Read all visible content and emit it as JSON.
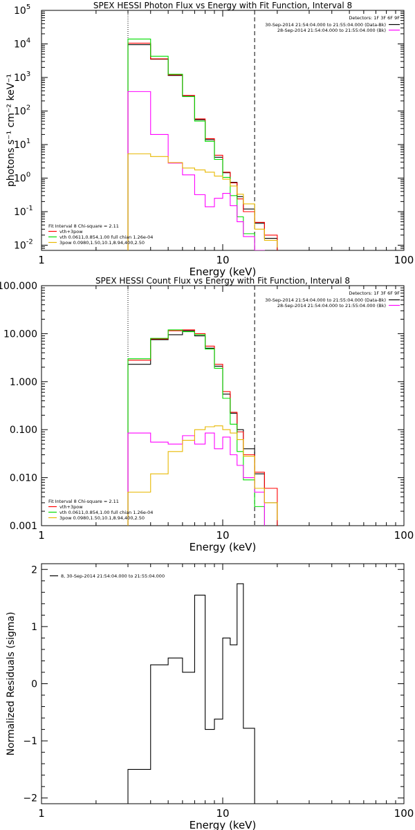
{
  "chart_data": [
    {
      "type": "line",
      "title": "SPEX HESSI Photon Flux vs Energy with Fit Function, Interval 8",
      "xlabel": "Energy (keV)",
      "ylabel": "photons s⁻¹ cm⁻² keV⁻¹",
      "xscale": "log",
      "yscale": "log",
      "xlim": [
        1,
        100
      ],
      "ylim": [
        0.007,
        100000
      ],
      "xticks": [
        {
          "v": 1,
          "label": "1"
        },
        {
          "v": 10,
          "label": "10"
        },
        {
          "v": 100,
          "label": "100"
        }
      ],
      "yticks": [
        {
          "v": 0.01,
          "base": "10",
          "exp": "-2"
        },
        {
          "v": 0.1,
          "base": "10",
          "exp": "-1"
        },
        {
          "v": 1,
          "base": "10",
          "exp": "0"
        },
        {
          "v": 10,
          "base": "10",
          "exp": "1"
        },
        {
          "v": 100,
          "base": "10",
          "exp": "2"
        },
        {
          "v": 1000,
          "base": "10",
          "exp": "3"
        },
        {
          "v": 10000,
          "base": "10",
          "exp": "4"
        },
        {
          "v": 100000,
          "base": "10",
          "exp": "5"
        }
      ],
      "vlines": [
        {
          "x": 3.0,
          "style": "dotted"
        },
        {
          "x": 15.0,
          "style": "dashed"
        }
      ],
      "header_right": {
        "detectors": "Detectors: 1F 3F 6F 9F",
        "lines": [
          {
            "text": "30-Sep-2014 21:54:04.000 to 21:55:04.000 (Data-Bk)",
            "color": "#000000"
          },
          {
            "text": "28-Sep-2014 21:54:04.000 to 21:55:04.000 (Bk)",
            "color": "#ff00ff"
          }
        ]
      },
      "legend_bottom_left": {
        "heading": "Fit Interval 8   Chi-square = 2.11",
        "items": [
          {
            "text": "vth+3pow",
            "color": "#ff0000"
          },
          {
            "text": "vth 0.0611,0.854,1.00  full chian 1.26e-04",
            "color": "#00dd00"
          },
          {
            "text": "3pow 0.0980,1.50,10.1,8.94,400,2.50",
            "color": "#e8b800"
          }
        ]
      },
      "edges": [
        3.0,
        4.0,
        5.0,
        6.0,
        7.0,
        8.0,
        9.0,
        10.0,
        11.0,
        12.0,
        13.0,
        15.0,
        17.0,
        20.0
      ],
      "series": [
        {
          "color": "#000000",
          "values": [
            9500,
            3500,
            1150,
            280,
            55,
            14,
            4.2,
            1.45,
            0.75,
            0.28,
            0.12,
            0.045,
            0.016
          ]
        },
        {
          "color": "#ff0000",
          "values": [
            10500,
            3600,
            1200,
            290,
            58,
            15,
            4.8,
            1.5,
            0.72,
            0.24,
            0.1,
            0.048,
            0.02
          ]
        },
        {
          "color": "#00dd00",
          "values": [
            14000,
            4300,
            1250,
            270,
            50,
            12.5,
            3.6,
            1.05,
            0.3,
            0.07,
            0.022,
            0.006
          ]
        },
        {
          "color": "#ff00ff",
          "values": [
            380,
            20,
            2.8,
            1.25,
            0.32,
            0.14,
            0.25,
            0.35,
            0.15,
            0.05,
            0.018,
            0.007
          ]
        },
        {
          "color": "#e8b800",
          "values": [
            5.3,
            4.4,
            2.9,
            2.0,
            1.75,
            1.5,
            1.15,
            0.93,
            0.58,
            0.33,
            0.17,
            0.03,
            0.014,
            0.0085
          ]
        }
      ]
    },
    {
      "type": "line",
      "title": "SPEX HESSI Count Flux vs Energy with Fit Function, Interval 8",
      "xlabel": "Energy (keV)",
      "ylabel": "",
      "xscale": "log",
      "yscale": "log",
      "xlim": [
        1,
        100
      ],
      "ylim": [
        0.001,
        100
      ],
      "xticks": [
        {
          "v": 1,
          "label": "1"
        },
        {
          "v": 10,
          "label": "10"
        },
        {
          "v": 100,
          "label": "100"
        }
      ],
      "yticks": [
        {
          "v": 0.001,
          "label": "0.001"
        },
        {
          "v": 0.01,
          "label": "0.010"
        },
        {
          "v": 0.1,
          "label": "0.100"
        },
        {
          "v": 1,
          "label": "1.000"
        },
        {
          "v": 10,
          "label": "10.000"
        },
        {
          "v": 100,
          "label": "100.000"
        }
      ],
      "vlines": [
        {
          "x": 3.0,
          "style": "dotted"
        },
        {
          "x": 15.0,
          "style": "dashed"
        }
      ],
      "header_right": {
        "detectors": "Detectors: 1F 3F 6F 9F",
        "lines": [
          {
            "text": "30-Sep-2014 21:54:04.000 to 21:55:04.000 (Data-Bk)",
            "color": "#000000"
          },
          {
            "text": "28-Sep-2014 21:54:04.000 to 21:55:04.000 (Bk)",
            "color": "#ff00ff"
          }
        ]
      },
      "legend_bottom_left": {
        "heading": "Fit Interval 8   Chi-square = 2.11",
        "items": [
          {
            "text": "vth+3pow",
            "color": "#ff0000"
          },
          {
            "text": "vth 0.0611,0.854,1.00  full chian 1.26e-04",
            "color": "#00dd00"
          },
          {
            "text": "3pow 0.0980,1.50,10.1,8.94,400,2.50",
            "color": "#e8b800"
          }
        ]
      },
      "edges": [
        3.0,
        4.0,
        5.0,
        6.0,
        7.0,
        8.0,
        9.0,
        10.0,
        11.0,
        12.0,
        13.0,
        15.0,
        17.0,
        20.0
      ],
      "series": [
        {
          "color": "#000000",
          "values": [
            2.3,
            7.5,
            9.5,
            11.5,
            9.0,
            5.0,
            2.1,
            0.55,
            0.22,
            0.1,
            0.04,
            0.012,
            0.003
          ]
        },
        {
          "color": "#ff0000",
          "values": [
            2.8,
            7.8,
            11.5,
            12.0,
            10.0,
            5.5,
            2.3,
            0.62,
            0.23,
            0.09,
            0.03,
            0.013,
            0.006
          ]
        },
        {
          "color": "#00dd00",
          "values": [
            3.0,
            8.0,
            12.0,
            11.0,
            9.5,
            4.8,
            1.9,
            0.45,
            0.13,
            0.035,
            0.009,
            0.0025
          ]
        },
        {
          "color": "#ff00ff",
          "values": [
            0.085,
            0.055,
            0.05,
            0.075,
            0.05,
            0.085,
            0.04,
            0.07,
            0.03,
            0.018,
            0.01,
            0.005
          ]
        },
        {
          "color": "#e8b800",
          "values": [
            0.005,
            0.012,
            0.035,
            0.06,
            0.1,
            0.115,
            0.12,
            0.1,
            0.085,
            0.062,
            0.028,
            0.006,
            0.003,
            0.0013
          ]
        }
      ]
    },
    {
      "type": "line",
      "title": "",
      "xlabel": "Energy (keV)",
      "ylabel": "Normalized Residuals (sigma)",
      "xscale": "log",
      "yscale": "linear",
      "xlim": [
        1,
        100
      ],
      "ylim": [
        -2.1,
        2.1
      ],
      "xticks": [
        {
          "v": 1,
          "label": "1"
        },
        {
          "v": 10,
          "label": "10"
        },
        {
          "v": 100,
          "label": "100"
        }
      ],
      "yticks": [
        {
          "v": -2,
          "label": "−2"
        },
        {
          "v": -1,
          "label": "−1"
        },
        {
          "v": 0,
          "label": "0"
        },
        {
          "v": 1,
          "label": "1"
        },
        {
          "v": 2,
          "label": "2"
        }
      ],
      "legend_top_left": {
        "text": "8, 30-Sep-2014 21:54:04.000 to 21:55:04.000",
        "color": "#000000"
      },
      "edges": [
        3.0,
        4.0,
        5.0,
        6.0,
        7.0,
        8.0,
        9.0,
        10.0,
        11.0,
        12.0,
        13.0,
        15.0
      ],
      "series": [
        {
          "color": "#000000",
          "values": [
            -1.5,
            0.33,
            0.45,
            0.2,
            1.55,
            -0.8,
            -0.62,
            0.8,
            0.68,
            1.75,
            -0.78
          ]
        }
      ]
    }
  ]
}
